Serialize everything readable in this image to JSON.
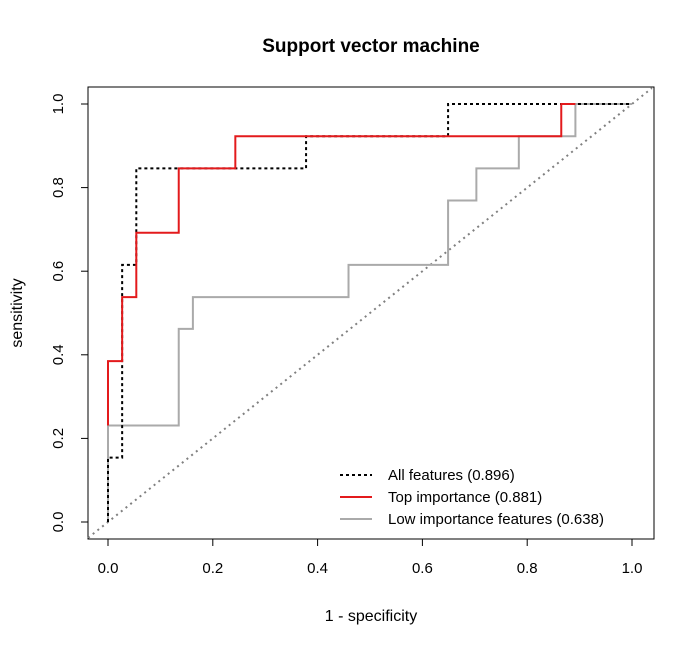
{
  "chart_data": {
    "type": "line",
    "title": "Support vector machine",
    "xlabel": "1 - specificity",
    "ylabel": "sensitivity",
    "xlim": [
      0,
      1
    ],
    "ylim": [
      0,
      1
    ],
    "x_ticks": [
      0.0,
      0.2,
      0.4,
      0.6,
      0.8,
      1.0
    ],
    "y_ticks": [
      0.0,
      0.2,
      0.4,
      0.6,
      0.8,
      1.0
    ],
    "x_tick_labels": [
      "0.0",
      "0.2",
      "0.4",
      "0.6",
      "0.8",
      "1.0"
    ],
    "y_tick_labels": [
      "0.0",
      "0.2",
      "0.4",
      "0.6",
      "0.8",
      "1.0"
    ],
    "grid": false,
    "legend_position": "bottom-right",
    "reference_line": {
      "style": "dotted",
      "color": "#808080",
      "points": [
        [
          0,
          0
        ],
        [
          1,
          1
        ]
      ]
    },
    "series": [
      {
        "name": "All features (0.896)",
        "color": "#000000",
        "style": "dotted",
        "points": [
          [
            0,
            0
          ],
          [
            0,
            0.154
          ],
          [
            0.027,
            0.154
          ],
          [
            0.027,
            0.615
          ],
          [
            0.054,
            0.615
          ],
          [
            0.054,
            0.846
          ],
          [
            0.378,
            0.846
          ],
          [
            0.378,
            0.923
          ],
          [
            0.649,
            0.923
          ],
          [
            0.649,
            1.0
          ],
          [
            1.0,
            1.0
          ]
        ]
      },
      {
        "name": "Top importance (0.881)",
        "color": "#e31a1c",
        "style": "solid",
        "points": [
          [
            0,
            0.231
          ],
          [
            0,
            0.385
          ],
          [
            0.027,
            0.385
          ],
          [
            0.027,
            0.538
          ],
          [
            0.054,
            0.538
          ],
          [
            0.054,
            0.692
          ],
          [
            0.135,
            0.692
          ],
          [
            0.135,
            0.846
          ],
          [
            0.243,
            0.846
          ],
          [
            0.243,
            0.923
          ],
          [
            0.865,
            0.923
          ],
          [
            0.865,
            1.0
          ],
          [
            0.892,
            1.0
          ]
        ]
      },
      {
        "name": "Low importance features (0.638)",
        "color": "#aaaaaa",
        "style": "solid",
        "points": [
          [
            0,
            0
          ],
          [
            0,
            0.231
          ],
          [
            0.135,
            0.231
          ],
          [
            0.135,
            0.462
          ],
          [
            0.162,
            0.462
          ],
          [
            0.162,
            0.538
          ],
          [
            0.459,
            0.538
          ],
          [
            0.459,
            0.615
          ],
          [
            0.649,
            0.615
          ],
          [
            0.649,
            0.769
          ],
          [
            0.703,
            0.769
          ],
          [
            0.703,
            0.846
          ],
          [
            0.784,
            0.846
          ],
          [
            0.784,
            0.923
          ],
          [
            0.892,
            0.923
          ],
          [
            0.892,
            1.0
          ],
          [
            1.0,
            1.0
          ]
        ]
      }
    ]
  }
}
